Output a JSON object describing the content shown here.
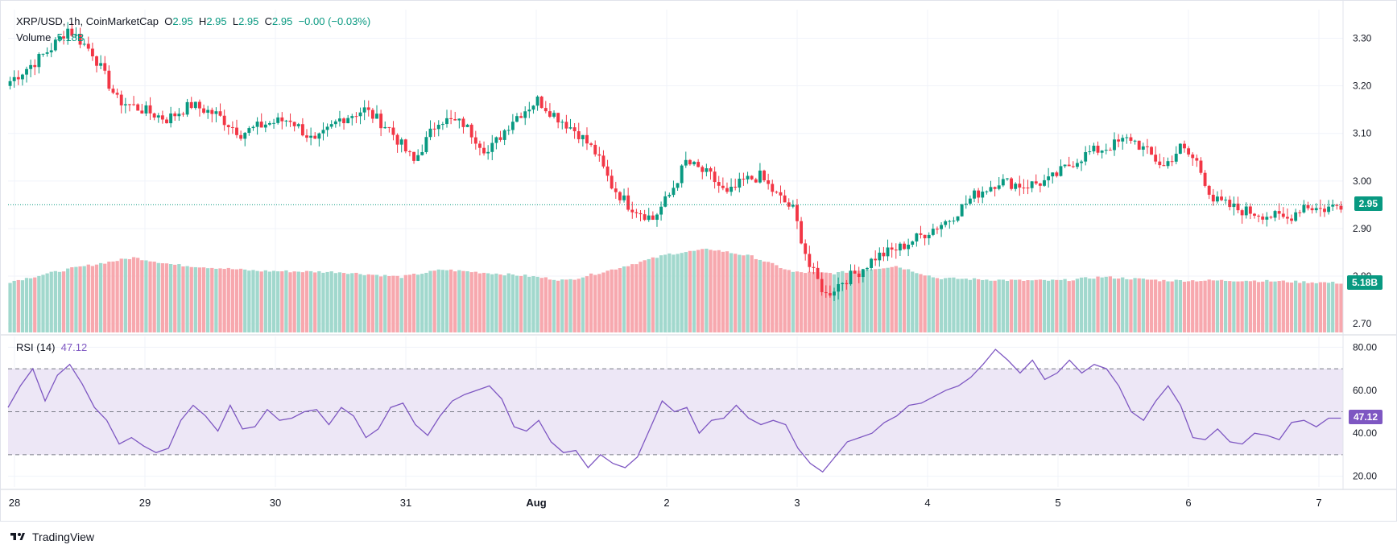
{
  "header": {
    "symbol": "XRP/USD, 1h, CoinMarketCap",
    "open_label": "O",
    "open": "2.95",
    "high_label": "H",
    "high": "2.95",
    "low_label": "L",
    "low": "2.95",
    "close_label": "C",
    "close": "2.95",
    "change": "−0.00 (−0.03%)",
    "volume_label": "Volume",
    "volume": "5.18B",
    "rsi_label": "RSI (14)",
    "rsi": "47.12"
  },
  "badges": {
    "price": "2.95",
    "volume": "5.18B",
    "rsi": "47.12"
  },
  "branding": {
    "name": "TradingView"
  },
  "colors": {
    "up": "#089981",
    "down": "#f23645",
    "vol_up": "#a1d8cd",
    "vol_down": "#f7a8ae",
    "rsi_line": "#7e57c2",
    "rsi_band": "#ede7f6",
    "grid": "#f0f3fa"
  },
  "chart_data": [
    {
      "type": "candlestick",
      "title": "XRP/USD, 1h, CoinMarketCap",
      "ylim": [
        2.68,
        3.36
      ],
      "y_ticks": [
        2.7,
        2.8,
        2.9,
        3.0,
        3.1,
        3.2,
        3.3
      ],
      "y_tick_labels": [
        "2.70",
        "2.80",
        "2.90",
        "3.00",
        "3.10",
        "3.20",
        "3.30"
      ],
      "x_ticks": [
        "28",
        "29",
        "30",
        "31",
        "Aug",
        "2",
        "3",
        "4",
        "5",
        "6",
        "7"
      ],
      "last_price": 2.95,
      "close_path": [
        [
          0,
          3.21
        ],
        [
          6,
          3.25
        ],
        [
          10,
          3.28
        ],
        [
          14,
          3.32
        ],
        [
          20,
          3.27
        ],
        [
          26,
          3.17
        ],
        [
          32,
          3.15
        ],
        [
          38,
          3.13
        ],
        [
          44,
          3.16
        ],
        [
          50,
          3.14
        ],
        [
          56,
          3.1
        ],
        [
          62,
          3.12
        ],
        [
          68,
          3.13
        ],
        [
          74,
          3.08
        ],
        [
          80,
          3.13
        ],
        [
          86,
          3.15
        ],
        [
          92,
          3.11
        ],
        [
          98,
          3.04
        ],
        [
          104,
          3.13
        ],
        [
          110,
          3.12
        ],
        [
          116,
          3.06
        ],
        [
          122,
          3.13
        ],
        [
          128,
          3.17
        ],
        [
          132,
          3.14
        ],
        [
          138,
          3.1
        ],
        [
          142,
          3.06
        ],
        [
          146,
          2.99
        ],
        [
          150,
          2.95
        ],
        [
          156,
          2.92
        ],
        [
          160,
          2.97
        ],
        [
          164,
          3.04
        ],
        [
          170,
          3.01
        ],
        [
          174,
          2.97
        ],
        [
          178,
          3.0
        ],
        [
          182,
          3.01
        ],
        [
          186,
          2.97
        ],
        [
          190,
          2.94
        ],
        [
          194,
          2.82
        ],
        [
          198,
          2.76
        ],
        [
          202,
          2.79
        ],
        [
          206,
          2.81
        ],
        [
          210,
          2.84
        ],
        [
          216,
          2.86
        ],
        [
          222,
          2.89
        ],
        [
          228,
          2.92
        ],
        [
          234,
          2.97
        ],
        [
          240,
          3.0
        ],
        [
          246,
          2.99
        ],
        [
          252,
          3.0
        ],
        [
          258,
          3.04
        ],
        [
          262,
          3.06
        ],
        [
          266,
          3.07
        ],
        [
          272,
          3.09
        ],
        [
          276,
          3.06
        ],
        [
          280,
          3.03
        ],
        [
          284,
          3.07
        ],
        [
          288,
          3.04
        ],
        [
          292,
          2.96
        ],
        [
          298,
          2.94
        ],
        [
          304,
          2.93
        ],
        [
          310,
          2.92
        ],
        [
          314,
          2.95
        ],
        [
          318,
          2.94
        ],
        [
          323,
          2.95
        ]
      ],
      "volume_ylim": [
        0,
        10
      ],
      "volume_path": [
        [
          0,
          4.2
        ],
        [
          15,
          5.3
        ],
        [
          30,
          6.2
        ],
        [
          40,
          5.6
        ],
        [
          60,
          5.1
        ],
        [
          80,
          5.0
        ],
        [
          95,
          4.6
        ],
        [
          105,
          5.2
        ],
        [
          125,
          4.7
        ],
        [
          135,
          4.3
        ],
        [
          145,
          5.1
        ],
        [
          160,
          6.5
        ],
        [
          170,
          6.9
        ],
        [
          180,
          6.3
        ],
        [
          190,
          5.0
        ],
        [
          200,
          4.9
        ],
        [
          215,
          5.5
        ],
        [
          225,
          4.5
        ],
        [
          245,
          4.3
        ],
        [
          255,
          4.3
        ],
        [
          265,
          4.6
        ],
        [
          280,
          4.3
        ],
        [
          300,
          4.3
        ],
        [
          323,
          4.1
        ]
      ]
    },
    {
      "type": "line",
      "title": "RSI (14)",
      "ylim": [
        15,
        85
      ],
      "y_ticks": [
        20,
        40,
        60,
        80
      ],
      "y_tick_labels": [
        "20.00",
        "40.00",
        "60.00",
        "80.00"
      ],
      "bands": [
        30,
        50,
        70
      ],
      "last_value": 47.12,
      "series": [
        {
          "values": [
            52,
            62,
            70,
            55,
            67,
            72,
            63,
            52,
            46,
            35,
            38,
            34,
            31,
            33,
            46,
            53,
            48,
            41,
            53,
            42,
            43,
            51,
            46,
            47,
            50,
            51,
            44,
            52,
            48,
            38,
            42,
            52,
            54,
            44,
            39,
            48,
            55,
            58,
            60,
            62,
            56,
            43,
            41,
            46,
            36,
            31,
            32,
            24,
            30,
            26,
            24,
            29,
            42,
            55,
            50,
            52,
            40,
            46,
            47,
            53,
            47,
            44,
            46,
            44,
            33,
            26,
            22,
            29,
            36,
            38,
            40,
            45,
            48,
            53,
            54,
            57,
            60,
            62,
            66,
            72,
            79,
            74,
            68,
            74,
            65,
            68,
            74,
            68,
            72,
            70,
            62,
            50,
            46,
            55,
            62,
            53,
            38,
            37,
            42,
            36,
            35,
            40,
            39,
            37,
            45,
            46,
            43,
            47,
            47
          ]
        }
      ]
    }
  ]
}
